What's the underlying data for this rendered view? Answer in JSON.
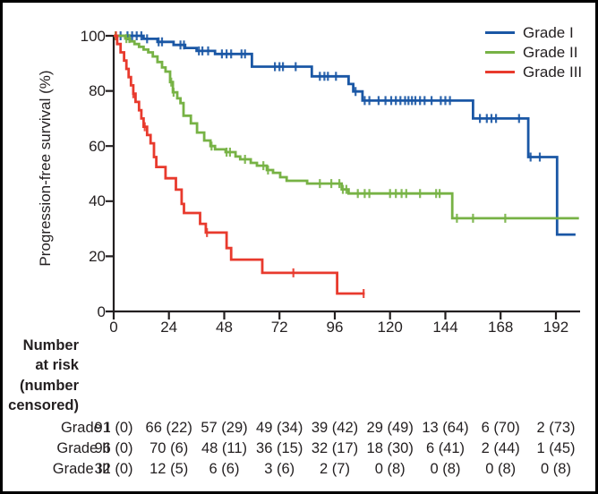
{
  "chart_data": {
    "type": "line",
    "subtype": "kaplan-meier-step",
    "title": "",
    "xlabel": "",
    "ylabel": "Progression-free survival (%)",
    "x_ticks": [
      0,
      24,
      48,
      72,
      96,
      120,
      144,
      168,
      192
    ],
    "y_ticks": [
      0,
      20,
      40,
      60,
      80,
      100
    ],
    "xlim": [
      0,
      203
    ],
    "ylim": [
      0,
      100
    ],
    "grid": false,
    "legend_position": "top-right",
    "axis_color": "#231f20",
    "series": [
      {
        "name": "Grade I",
        "color": "#1a57a5",
        "end": 200.5,
        "steps": [
          [
            0,
            100
          ],
          [
            13,
            98.9
          ],
          [
            19,
            97.8
          ],
          [
            26,
            96.7
          ],
          [
            31,
            95.6
          ],
          [
            36,
            94.5
          ],
          [
            44,
            93.4
          ],
          [
            60,
            88.8
          ],
          [
            86,
            85.3
          ],
          [
            102,
            82.5
          ],
          [
            104,
            79.8
          ],
          [
            108,
            76.5
          ],
          [
            156,
            70
          ],
          [
            180,
            56
          ],
          [
            192.5,
            27.9
          ]
        ],
        "censor_times": [
          3,
          6,
          8,
          10,
          12,
          14.5,
          19.5,
          21,
          29,
          30.5,
          37,
          38.5,
          41,
          47,
          49,
          51,
          55.5,
          57,
          70,
          72,
          73.5,
          79,
          89.5,
          91.5,
          93,
          96.5,
          105,
          109,
          111,
          115,
          118,
          120.5,
          122.5,
          124.5,
          126.5,
          128,
          129.5,
          131,
          133,
          135,
          138,
          142,
          144,
          146,
          159,
          162,
          164,
          166,
          176,
          181,
          185
        ]
      },
      {
        "name": "Grade II",
        "color": "#77b245",
        "end": 202,
        "steps": [
          [
            0,
            100
          ],
          [
            5,
            99
          ],
          [
            7,
            98
          ],
          [
            9,
            97
          ],
          [
            11,
            96
          ],
          [
            13,
            95
          ],
          [
            15,
            94
          ],
          [
            17,
            92.5
          ],
          [
            19,
            90.5
          ],
          [
            21,
            88.5
          ],
          [
            22.5,
            87
          ],
          [
            24.5,
            83.2
          ],
          [
            25.7,
            79.5
          ],
          [
            27.6,
            77.3
          ],
          [
            29,
            75.6
          ],
          [
            30.3,
            71
          ],
          [
            33.5,
            68.2
          ],
          [
            36.2,
            64.9
          ],
          [
            39.3,
            62
          ],
          [
            42,
            60
          ],
          [
            44,
            58.8
          ],
          [
            48.6,
            57.8
          ],
          [
            52.9,
            56.2
          ],
          [
            54.9,
            55.2
          ],
          [
            59.5,
            53.9
          ],
          [
            62.2,
            52.9
          ],
          [
            66.5,
            51.3
          ],
          [
            69.2,
            50.3
          ],
          [
            72.3,
            48.7
          ],
          [
            75.1,
            47.4
          ],
          [
            84,
            46.4
          ],
          [
            99,
            44.3
          ],
          [
            102,
            42.8
          ],
          [
            147,
            33.8
          ]
        ],
        "censor_times": [
          0.8,
          5.5,
          6.8,
          25,
          26,
          42.5,
          49,
          50.5,
          57,
          65,
          67,
          89.5,
          94.5,
          98,
          99.5,
          101,
          106,
          109,
          111,
          120,
          122.5,
          125,
          127,
          133,
          140,
          141.5,
          149,
          156,
          170
        ]
      },
      {
        "name": "Grade III",
        "color": "#e83a2d",
        "end": 109,
        "steps": [
          [
            0,
            100
          ],
          [
            1.5,
            97
          ],
          [
            3,
            94
          ],
          [
            4.5,
            91
          ],
          [
            5.5,
            88
          ],
          [
            6.5,
            85
          ],
          [
            7.5,
            82
          ],
          [
            8.5,
            79
          ],
          [
            9.5,
            76
          ],
          [
            11,
            73
          ],
          [
            12,
            70
          ],
          [
            13,
            67
          ],
          [
            14.5,
            64
          ],
          [
            16,
            61
          ],
          [
            17.5,
            56
          ],
          [
            18.5,
            52.4
          ],
          [
            22.5,
            48.3
          ],
          [
            27,
            44.2
          ],
          [
            29.5,
            39
          ],
          [
            30.5,
            35.7
          ],
          [
            37.5,
            31.8
          ],
          [
            40,
            28.6
          ],
          [
            49,
            23
          ],
          [
            51,
            18.8
          ],
          [
            64.5,
            14
          ],
          [
            97,
            6.5
          ]
        ],
        "censor_times": [
          1,
          8.5,
          13.5,
          40.5,
          78,
          108.5
        ]
      }
    ]
  },
  "risk_table": {
    "header_lines": [
      "Number",
      "at risk",
      "(number",
      "censored)"
    ],
    "rows": [
      {
        "label": "Grade I",
        "values": [
          "91 (0)",
          "66 (22)",
          "57 (29)",
          "49 (34)",
          "39 (42)",
          "29 (49)",
          "13 (64)",
          "6 (70)",
          "2 (73)"
        ]
      },
      {
        "label": "Grade II",
        "values": [
          "96 (0)",
          "70 (6)",
          "48 (11)",
          "36 (15)",
          "32 (17)",
          "18 (30)",
          "6 (41)",
          "2 (44)",
          "1 (45)"
        ]
      },
      {
        "label": "Grade III",
        "values": [
          "32 (0)",
          "12 (5)",
          "6 (6)",
          "3 (6)",
          "2 (7)",
          "0 (8)",
          "0 (8)",
          "0 (8)",
          "0 (8)"
        ]
      }
    ]
  },
  "colors": {
    "text": "#231f20",
    "background": "#ffffff",
    "border": "#000000"
  }
}
